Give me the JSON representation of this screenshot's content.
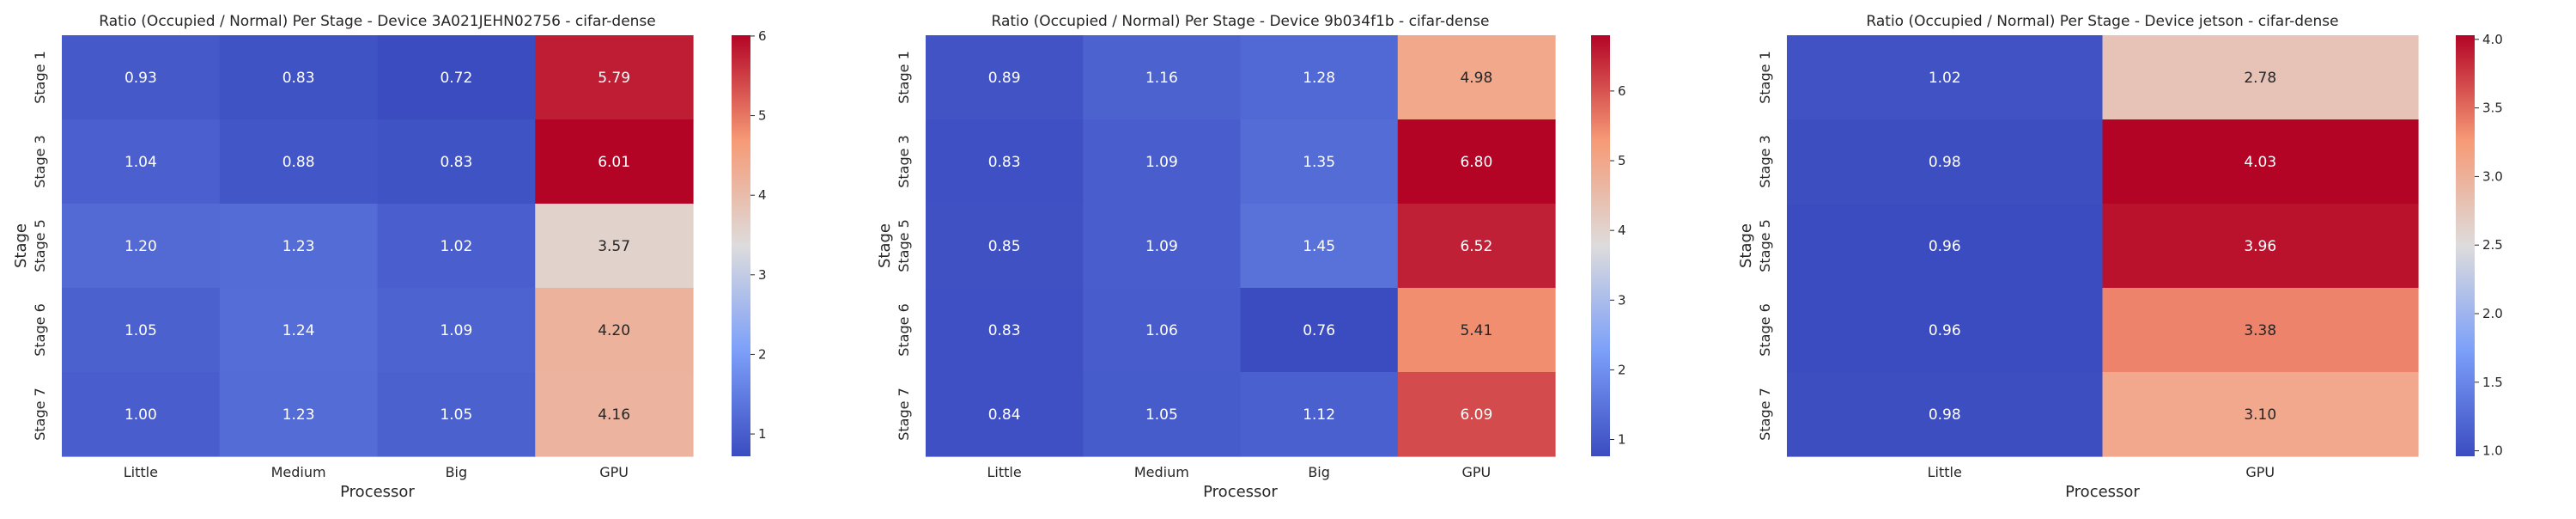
{
  "chart_data": [
    {
      "type": "heatmap",
      "title": "Ratio (Occupied / Normal) Per Stage - Device 3A021JEHN02756 - cifar-dense",
      "xlabel": "Processor",
      "ylabel": "Stage",
      "x_categories": [
        "Little",
        "Medium",
        "Big",
        "GPU"
      ],
      "y_categories": [
        "Stage 1",
        "Stage 3",
        "Stage 5",
        "Stage 6",
        "Stage 7"
      ],
      "values": [
        [
          0.93,
          0.83,
          0.72,
          5.79
        ],
        [
          1.04,
          0.88,
          0.83,
          6.01
        ],
        [
          1.2,
          1.23,
          1.02,
          3.57
        ],
        [
          1.05,
          1.24,
          1.09,
          4.2
        ],
        [
          1.0,
          1.23,
          1.05,
          4.16
        ]
      ],
      "colormap": "coolwarm",
      "colorbar_range": [
        0.72,
        6.01
      ],
      "colorbar_ticks": [
        1,
        2,
        3,
        4,
        5,
        6
      ]
    },
    {
      "type": "heatmap",
      "title": "Ratio (Occupied / Normal) Per Stage - Device 9b034f1b - cifar-dense",
      "xlabel": "Processor",
      "ylabel": "Stage",
      "x_categories": [
        "Little",
        "Medium",
        "Big",
        "GPU"
      ],
      "y_categories": [
        "Stage 1",
        "Stage 3",
        "Stage 5",
        "Stage 6",
        "Stage 7"
      ],
      "values": [
        [
          0.89,
          1.16,
          1.28,
          4.98
        ],
        [
          0.83,
          1.09,
          1.35,
          6.8
        ],
        [
          0.85,
          1.09,
          1.45,
          6.52
        ],
        [
          0.83,
          1.06,
          0.76,
          5.41
        ],
        [
          0.84,
          1.05,
          1.12,
          6.09
        ]
      ],
      "colormap": "coolwarm",
      "colorbar_range": [
        0.76,
        6.8
      ],
      "colorbar_ticks": [
        1,
        2,
        3,
        4,
        5,
        6
      ]
    },
    {
      "type": "heatmap",
      "title": "Ratio (Occupied / Normal) Per Stage - Device jetson - cifar-dense",
      "xlabel": "Processor",
      "ylabel": "Stage",
      "x_categories": [
        "Little",
        "GPU"
      ],
      "y_categories": [
        "Stage 1",
        "Stage 3",
        "Stage 5",
        "Stage 6",
        "Stage 7"
      ],
      "values": [
        [
          1.02,
          2.78
        ],
        [
          0.98,
          4.03
        ],
        [
          0.96,
          3.96
        ],
        [
          0.96,
          3.38
        ],
        [
          0.98,
          3.1
        ]
      ],
      "colormap": "coolwarm",
      "colorbar_range": [
        0.96,
        4.03
      ],
      "colorbar_ticks": [
        1.0,
        1.5,
        2.0,
        2.5,
        3.0,
        3.5,
        4.0
      ]
    }
  ]
}
